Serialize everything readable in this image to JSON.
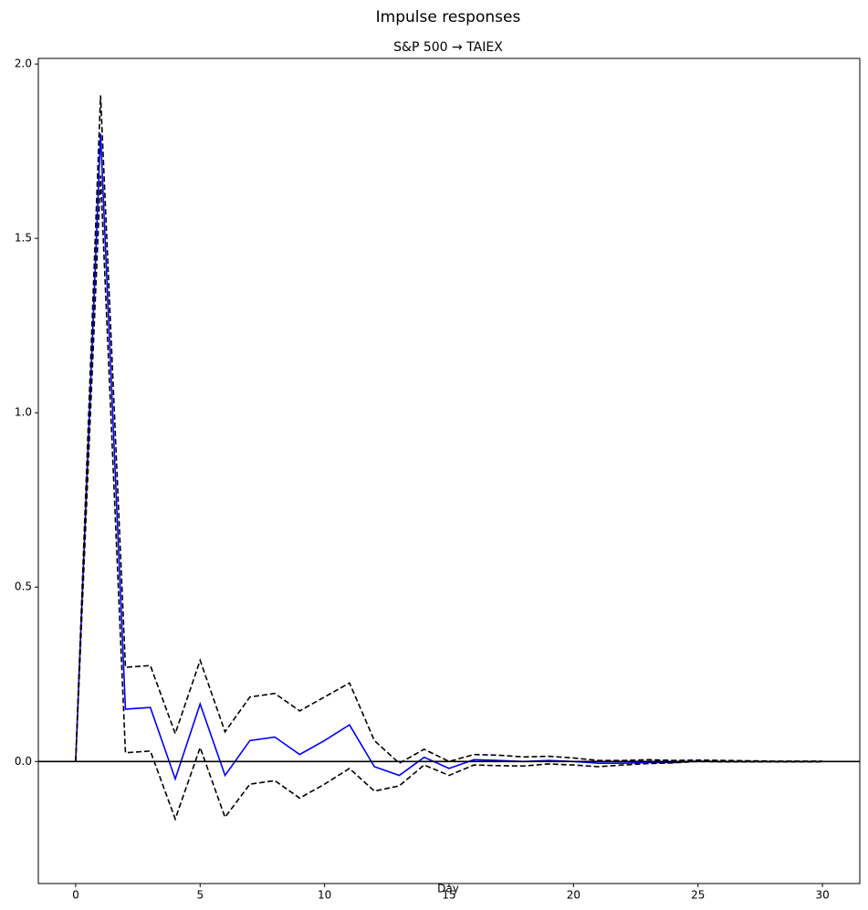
{
  "chart_data": {
    "type": "line",
    "title": "Impulse responses",
    "subtitle": "S&P 500 → TAIEX",
    "x_label": "Day",
    "x": [
      0,
      1,
      2,
      3,
      4,
      5,
      6,
      7,
      8,
      9,
      10,
      11,
      12,
      13,
      14,
      15,
      16,
      17,
      18,
      19,
      20,
      21,
      22,
      23,
      24,
      25,
      26,
      27,
      28,
      29,
      30
    ],
    "series": [
      {
        "color": "#0000ff",
        "dash": "solid",
        "values": [
          0,
          1.8,
          0.15,
          0.155,
          -0.05,
          0.165,
          -0.04,
          0.06,
          0.07,
          0.02,
          0.06,
          0.105,
          -0.015,
          -0.04,
          0.012,
          -0.02,
          0.005,
          0.003,
          0,
          0.003,
          0,
          -0.005,
          -0.005,
          -0.003,
          -0.003,
          0.001,
          0,
          0,
          0,
          0,
          0
        ]
      },
      {
        "color": "#000000",
        "dash": "dashed",
        "values": [
          0,
          1.91,
          0.27,
          0.275,
          0.08,
          0.29,
          0.085,
          0.185,
          0.195,
          0.145,
          0.185,
          0.225,
          0.06,
          -0.005,
          0.035,
          0,
          0.02,
          0.018,
          0.013,
          0.015,
          0.01,
          0.003,
          0.003,
          0.005,
          0.003,
          0.004,
          0.003,
          0.002,
          0.001,
          0.001,
          0.001
        ]
      },
      {
        "color": "#000000",
        "dash": "dashed",
        "values": [
          0,
          1.68,
          0.025,
          0.03,
          -0.165,
          0.04,
          -0.16,
          -0.065,
          -0.055,
          -0.105,
          -0.065,
          -0.02,
          -0.085,
          -0.07,
          -0.01,
          -0.04,
          -0.01,
          -0.012,
          -0.013,
          -0.007,
          -0.01,
          -0.015,
          -0.01,
          -0.006,
          -0.004,
          0,
          -0.001,
          -0.001,
          -0.001,
          -0.001,
          -0.001
        ]
      }
    ],
    "hline": 0,
    "xlim": [
      -1.5,
      31.5
    ],
    "xticks": [
      0,
      5,
      10,
      15,
      20,
      25,
      30
    ],
    "ylim": [
      -0.35,
      2.016
    ],
    "yticks": [
      {
        "value": 0,
        "label": "0.0"
      },
      0.5,
      {
        "value": 1,
        "label": "1.0"
      },
      1.5,
      {
        "value": 2,
        "label": "2.0"
      }
    ]
  }
}
